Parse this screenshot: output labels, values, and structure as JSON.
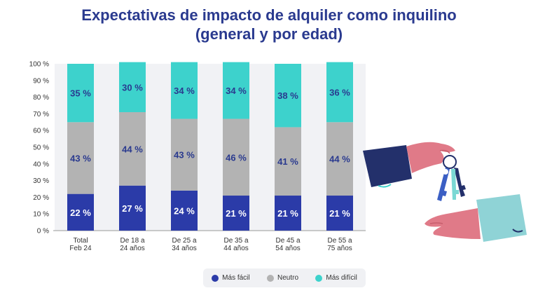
{
  "title": {
    "line1": "Expectativas de impacto de alquiler como inquilino",
    "line2": "(general y por edad)"
  },
  "colors": {
    "title": "#2a3a8f",
    "facil": "#2b3ba8",
    "neutro": "#b3b3b3",
    "dificil": "#3dd2cc"
  },
  "chart_data": {
    "type": "bar",
    "stacked": true,
    "categories": [
      [
        "Total",
        "Feb 24"
      ],
      [
        "De 18 a",
        "24 años"
      ],
      [
        "De 25 a",
        "34 años"
      ],
      [
        "De 35 a",
        "44 años"
      ],
      [
        "De 45 a",
        "54 años"
      ],
      [
        "De 55 a",
        "75 años"
      ]
    ],
    "series": [
      {
        "name": "Más fácil",
        "values": [
          22,
          27,
          24,
          21,
          21,
          21
        ],
        "labels": [
          "22 %",
          "27 %",
          "24 %",
          "21 %",
          "21 %",
          "21 %"
        ]
      },
      {
        "name": "Neutro",
        "values": [
          43,
          44,
          43,
          46,
          41,
          44
        ],
        "labels": [
          "43 %",
          "44 %",
          "43 %",
          "46 %",
          "41 %",
          "44 %"
        ]
      },
      {
        "name": "Más difícil",
        "values": [
          35,
          30,
          34,
          34,
          38,
          36
        ],
        "labels": [
          "35 %",
          "30 %",
          "34 %",
          "34 %",
          "38 %",
          "36 %"
        ]
      }
    ],
    "ylim": [
      0,
      100
    ],
    "yticks": [
      "0 %",
      "10 %",
      "20 %",
      "30 %",
      "40 %",
      "50 %",
      "60 %",
      "70 %",
      "80 %",
      "90 %",
      "100 %"
    ],
    "legend_position": "bottom"
  },
  "legend": {
    "items": [
      "Más fácil",
      "Neutro",
      "Más difícil"
    ]
  }
}
